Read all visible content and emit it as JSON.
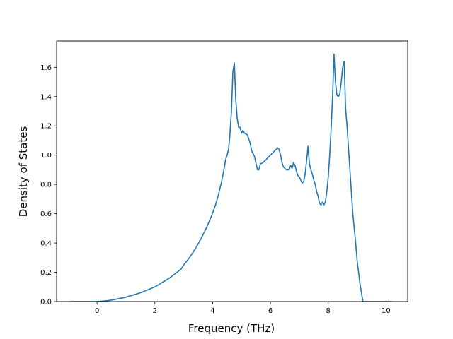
{
  "chart_data": {
    "type": "line",
    "title": "",
    "xlabel": "Frequency (THz)",
    "ylabel": "Density of States",
    "xlim": [
      -1.4,
      10.75
    ],
    "ylim": [
      0.0,
      1.78
    ],
    "grid": false,
    "legend": "none",
    "xticks": [
      0,
      2,
      4,
      6,
      8,
      10
    ],
    "xtick_labels": [
      "0",
      "2",
      "4",
      "6",
      "8",
      "10"
    ],
    "yticks": [
      0.0,
      0.2,
      0.4,
      0.6,
      0.8,
      1.0,
      1.2,
      1.4,
      1.6
    ],
    "ytick_labels": [
      "0.0",
      "0.2",
      "0.4",
      "0.6",
      "0.8",
      "1.0",
      "1.2",
      "1.4",
      "1.6"
    ],
    "series": [
      {
        "color": "#1f77b4",
        "x": [
          -0.95,
          -0.5,
          0.0,
          0.3,
          0.5,
          1.0,
          1.5,
          2.0,
          2.5,
          2.9,
          3.0,
          3.2,
          3.4,
          3.6,
          3.8,
          3.95,
          4.1,
          4.2,
          4.3,
          4.35,
          4.4,
          4.45,
          4.5,
          4.55,
          4.58,
          4.6,
          4.65,
          4.7,
          4.75,
          4.8,
          4.85,
          4.9,
          4.95,
          5.0,
          5.05,
          5.1,
          5.2,
          5.3,
          5.35,
          5.45,
          5.55,
          5.6,
          5.65,
          5.75,
          5.85,
          5.95,
          6.05,
          6.15,
          6.2,
          6.25,
          6.3,
          6.35,
          6.4,
          6.45,
          6.55,
          6.65,
          6.7,
          6.75,
          6.8,
          6.85,
          6.9,
          6.95,
          7.0,
          7.1,
          7.15,
          7.2,
          7.25,
          7.3,
          7.35,
          7.4,
          7.45,
          7.5,
          7.55,
          7.6,
          7.65,
          7.7,
          7.75,
          7.8,
          7.85,
          7.9,
          7.95,
          8.0,
          8.05,
          8.1,
          8.15,
          8.2,
          8.25,
          8.3,
          8.35,
          8.4,
          8.45,
          8.5,
          8.55,
          8.6,
          8.65,
          8.7,
          8.75,
          8.8,
          8.85,
          8.9,
          8.95,
          9.0,
          9.1,
          9.2,
          9.25,
          9.3,
          9.5,
          10.2
        ],
        "y": [
          0.0,
          0.0,
          0.0,
          0.005,
          0.01,
          0.03,
          0.06,
          0.1,
          0.16,
          0.22,
          0.25,
          0.3,
          0.36,
          0.43,
          0.51,
          0.58,
          0.66,
          0.73,
          0.81,
          0.86,
          0.91,
          0.97,
          1.0,
          1.04,
          1.1,
          1.15,
          1.3,
          1.57,
          1.63,
          1.38,
          1.25,
          1.19,
          1.19,
          1.15,
          1.17,
          1.15,
          1.14,
          1.08,
          1.03,
          0.99,
          0.9,
          0.9,
          0.94,
          0.95,
          0.97,
          0.99,
          1.01,
          1.03,
          1.04,
          1.05,
          1.04,
          1.0,
          0.95,
          0.92,
          0.9,
          0.9,
          0.93,
          0.91,
          0.95,
          0.93,
          0.89,
          0.86,
          0.85,
          0.81,
          0.82,
          0.87,
          0.96,
          1.06,
          0.94,
          0.9,
          0.87,
          0.83,
          0.8,
          0.75,
          0.72,
          0.67,
          0.66,
          0.68,
          0.66,
          0.68,
          0.75,
          0.85,
          1.0,
          1.18,
          1.4,
          1.69,
          1.5,
          1.41,
          1.4,
          1.42,
          1.5,
          1.6,
          1.64,
          1.32,
          1.2,
          1.05,
          0.9,
          0.75,
          0.6,
          0.5,
          0.4,
          0.28,
          0.12,
          0.0,
          0.0,
          0.0,
          0.0,
          0.0
        ]
      }
    ]
  }
}
